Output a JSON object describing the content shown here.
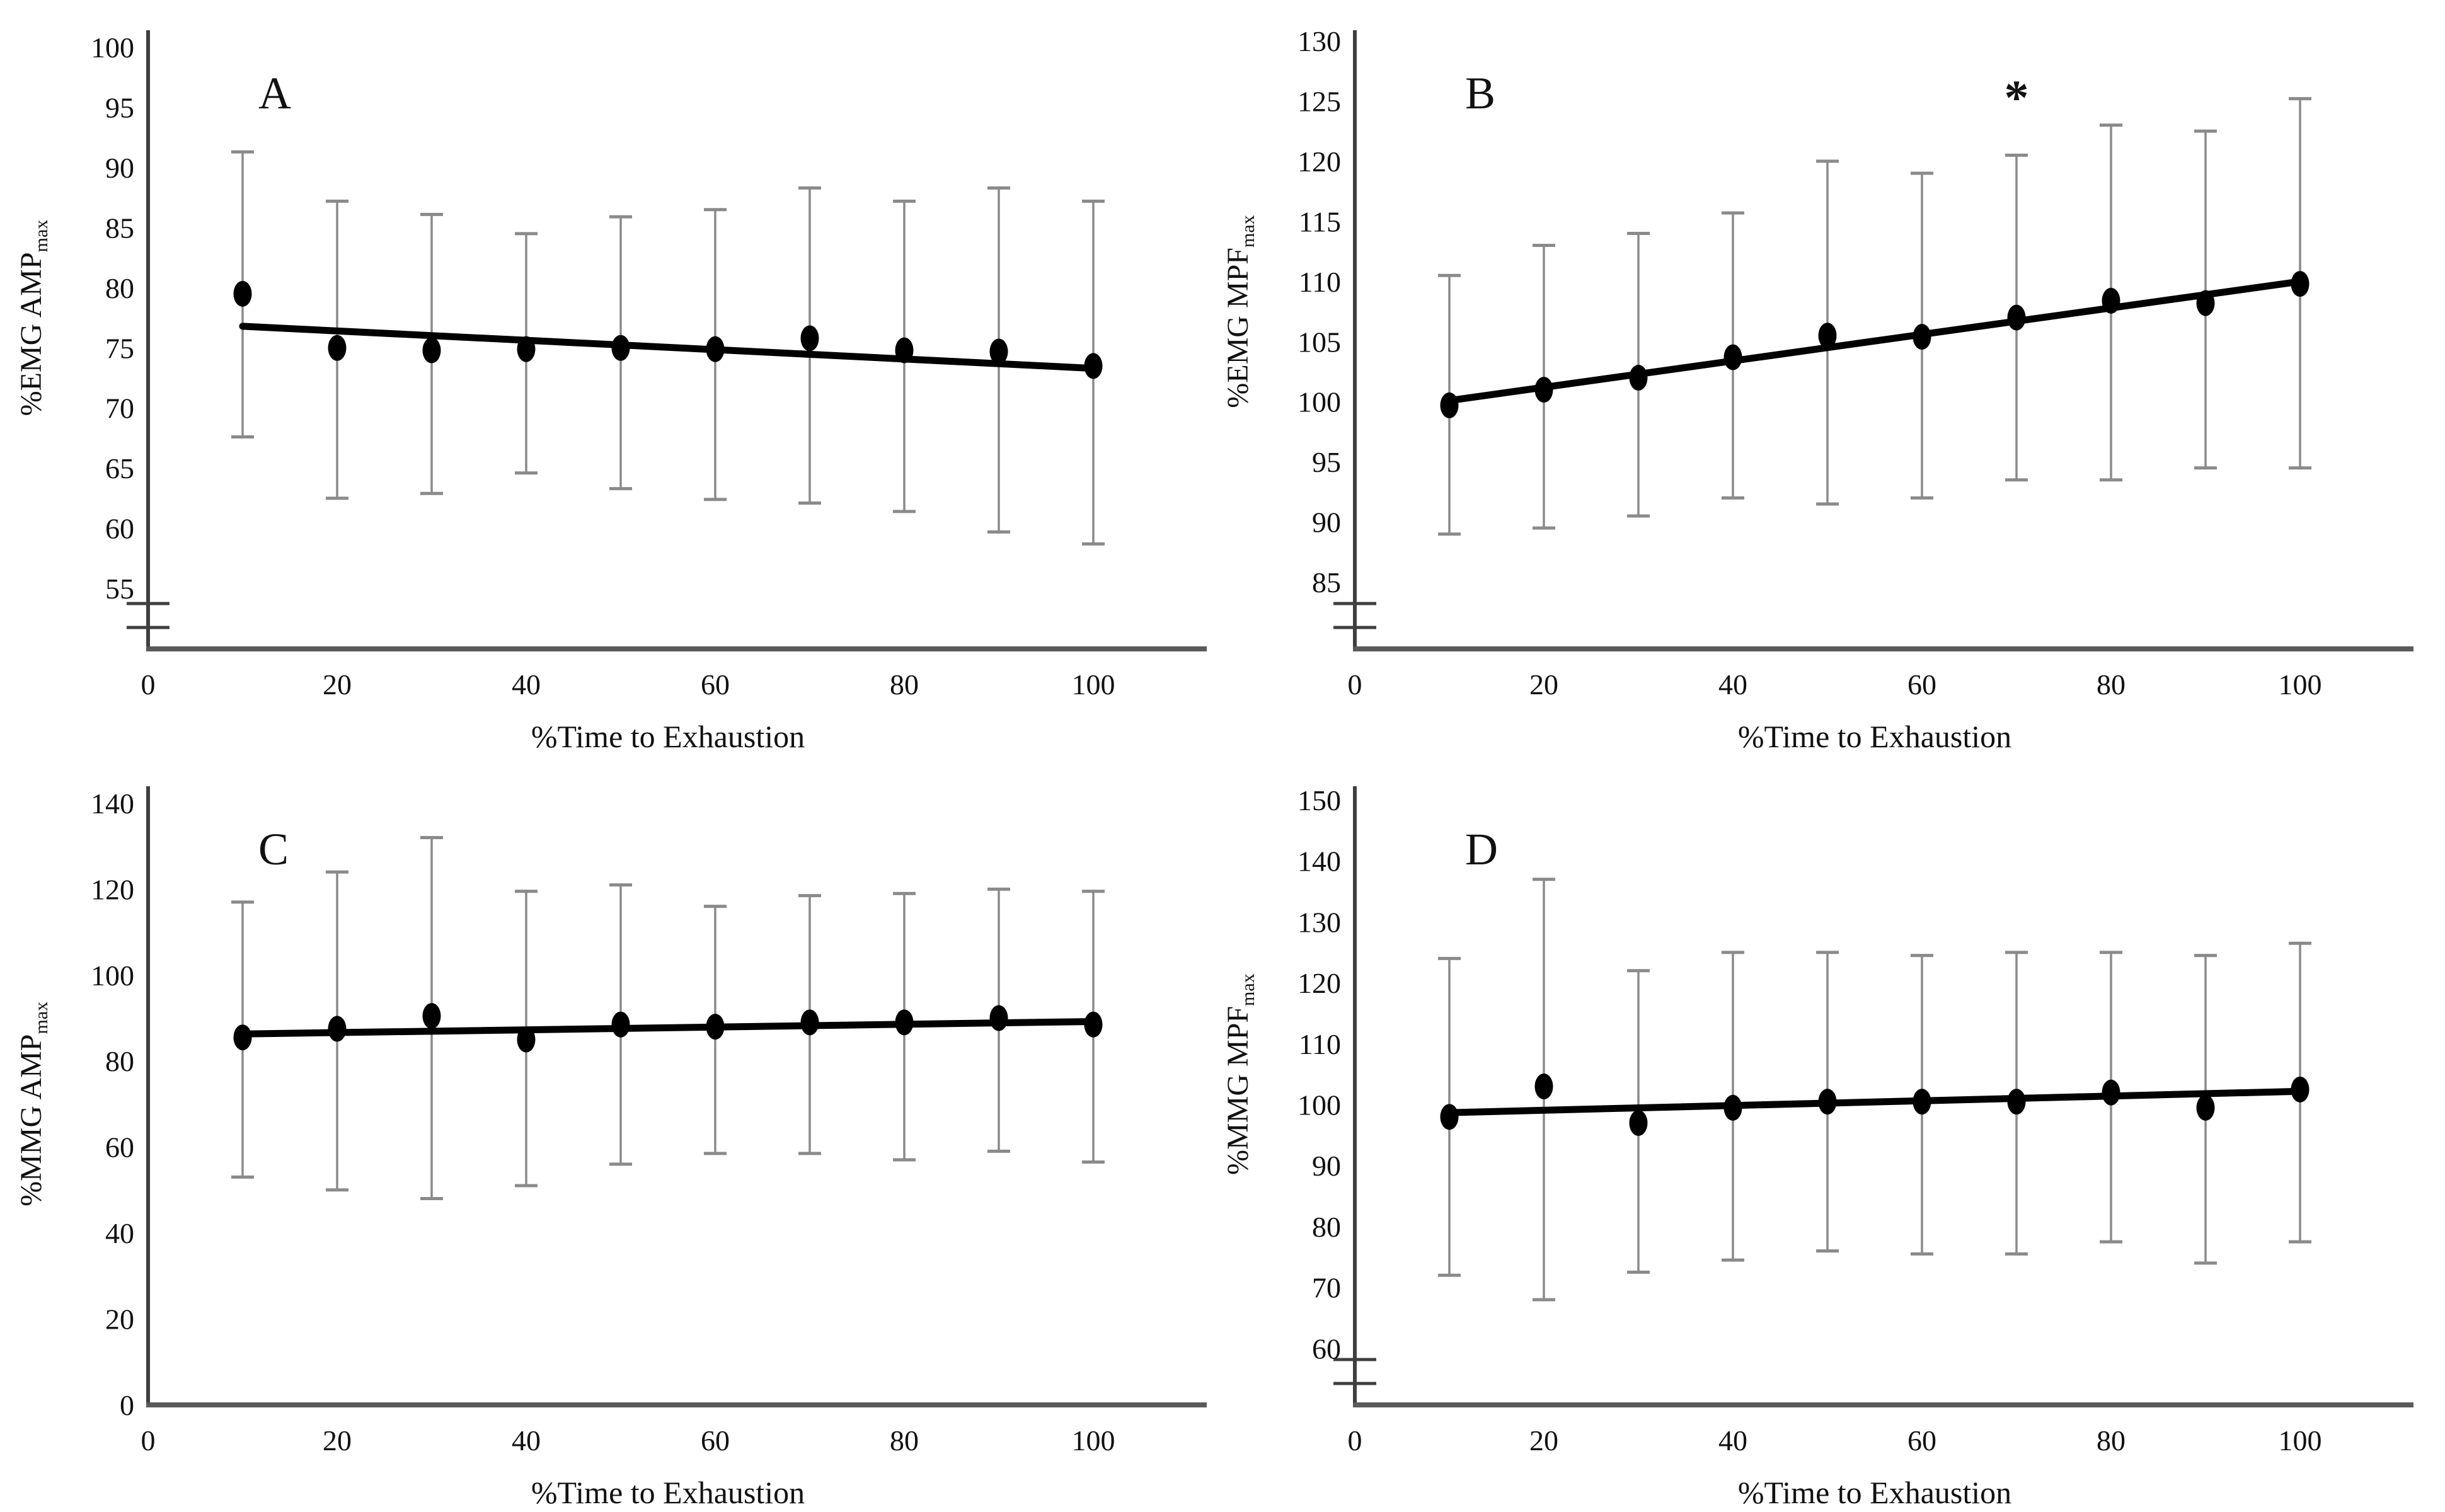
{
  "figure": {
    "xlabel": "%Time to Exhaustion",
    "x_ticks": [
      0,
      20,
      40,
      60,
      80,
      100
    ],
    "colors": {
      "point": "#000000",
      "trend_line": "#000000",
      "error_bar": "#8a8a8a",
      "y_axis": "#3f3f3f",
      "x_axis": "#5a5a5a",
      "text": "#111111"
    }
  },
  "chart_data": [
    {
      "type": "scatter",
      "panel_label": "A",
      "ylabel_main": "%EMG AMP",
      "ylabel_sub": "max",
      "xlabel": "%Time to Exhaustion",
      "x_ticks": [
        0,
        20,
        40,
        60,
        80,
        100
      ],
      "y_ticks": [
        55,
        60,
        65,
        70,
        75,
        80,
        85,
        90,
        95,
        100
      ],
      "axis_break": true,
      "x": [
        10,
        20,
        30,
        40,
        50,
        60,
        70,
        80,
        90,
        100
      ],
      "y": [
        79.5,
        75.0,
        74.8,
        74.9,
        75.0,
        74.9,
        75.8,
        74.8,
        74.7,
        73.5
      ],
      "err_upper": [
        91.3,
        87.2,
        86.1,
        84.5,
        85.9,
        86.5,
        88.3,
        87.2,
        88.3,
        87.2
      ],
      "err_lower": [
        67.6,
        62.5,
        62.9,
        64.6,
        63.3,
        62.4,
        62.1,
        61.4,
        59.7,
        58.7
      ],
      "trend": {
        "x1": 10,
        "y1": 76.8,
        "x2": 100,
        "y2": 73.3
      },
      "annotation": null
    },
    {
      "type": "scatter",
      "panel_label": "B",
      "ylabel_main": "%EMG MPF",
      "ylabel_sub": "max",
      "xlabel": "%Time to Exhaustion",
      "x_ticks": [
        0,
        20,
        40,
        60,
        80,
        100
      ],
      "y_ticks": [
        85,
        90,
        95,
        100,
        105,
        110,
        115,
        120,
        125,
        130
      ],
      "axis_break": true,
      "x": [
        10,
        20,
        30,
        40,
        50,
        60,
        70,
        80,
        90,
        100
      ],
      "y": [
        99.7,
        101.0,
        102.0,
        103.7,
        105.5,
        105.4,
        107.0,
        108.4,
        108.2,
        109.8
      ],
      "err_upper": [
        110.5,
        113.0,
        114.0,
        115.7,
        120.0,
        119.0,
        120.5,
        123.0,
        122.5,
        125.2
      ],
      "err_lower": [
        89.0,
        89.5,
        90.5,
        92.0,
        91.5,
        92.0,
        93.5,
        93.5,
        94.5,
        94.5
      ],
      "trend": {
        "x1": 10,
        "y1": 100.1,
        "x2": 100,
        "y2": 110.0
      },
      "annotation": {
        "text": "*",
        "x": 70,
        "y": 125.5
      }
    },
    {
      "type": "scatter",
      "panel_label": "C",
      "ylabel_main": "%MMG AMP",
      "ylabel_sub": "max",
      "xlabel": "%Time to Exhaustion",
      "x_ticks": [
        0,
        20,
        40,
        60,
        80,
        100
      ],
      "y_ticks": [
        0,
        20,
        40,
        60,
        80,
        100,
        120,
        140
      ],
      "axis_break": false,
      "x": [
        10,
        20,
        30,
        40,
        50,
        60,
        70,
        80,
        90,
        100
      ],
      "y": [
        85.5,
        87.5,
        90.5,
        85.0,
        88.5,
        88.0,
        89.0,
        89.0,
        90.0,
        88.5
      ],
      "err_upper": [
        117.0,
        124.0,
        132.0,
        119.5,
        121.0,
        116.0,
        118.5,
        119.0,
        120.0,
        119.5
      ],
      "err_lower": [
        53.0,
        50.0,
        48.0,
        51.0,
        56.0,
        58.5,
        58.5,
        57.0,
        59.0,
        56.5
      ],
      "trend": {
        "x1": 10,
        "y1": 86.3,
        "x2": 100,
        "y2": 89.2
      },
      "annotation": null
    },
    {
      "type": "scatter",
      "panel_label": "D",
      "ylabel_main": "%MMG MPF",
      "ylabel_sub": "max",
      "xlabel": "%Time to Exhaustion",
      "x_ticks": [
        0,
        20,
        40,
        60,
        80,
        100
      ],
      "y_ticks": [
        60,
        70,
        80,
        90,
        100,
        110,
        120,
        130,
        140,
        150
      ],
      "axis_break": true,
      "x": [
        10,
        20,
        30,
        40,
        50,
        60,
        70,
        80,
        90,
        100
      ],
      "y": [
        98.0,
        103.0,
        97.0,
        99.5,
        100.5,
        100.5,
        100.5,
        102.0,
        99.5,
        102.5
      ],
      "err_upper": [
        124.0,
        137.0,
        122.0,
        125.0,
        125.0,
        124.5,
        125.0,
        125.0,
        124.5,
        126.5
      ],
      "err_lower": [
        72.0,
        68.0,
        72.5,
        74.5,
        76.0,
        75.5,
        75.5,
        77.5,
        74.0,
        77.5
      ],
      "trend": {
        "x1": 10,
        "y1": 98.7,
        "x2": 100,
        "y2": 102.2
      },
      "annotation": null
    }
  ]
}
